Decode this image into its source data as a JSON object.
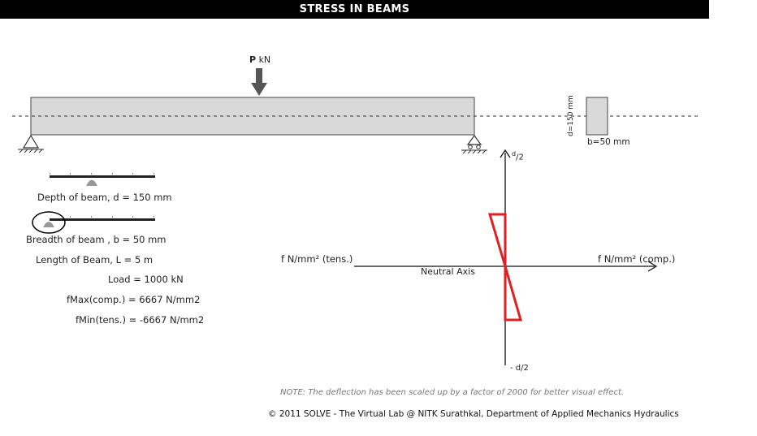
{
  "title": "STRESS IN BEAMS",
  "load_label": {
    "symbol": "P",
    "unit": "kN"
  },
  "section": {
    "depth_label": "d=150 mm",
    "breadth_label": "b=50 mm"
  },
  "params": {
    "depth": "Depth of beam, d =  150 mm",
    "breadth": "Breadth of beam , b = 50 mm",
    "length": "Length of Beam, L = 5 m",
    "load": "Load = 1000 kN",
    "fmax": "fMax(comp.) = 6667 N/mm2",
    "fmin": "fMin(tens.) = -6667 N/mm2"
  },
  "sliders": {
    "depth": {
      "position": 0.4
    },
    "breadth": {
      "position": 0.0
    }
  },
  "stress_diagram": {
    "top_label": "d",
    "top_sub": "/2",
    "bottom_label": "- d",
    "bottom_sub": "/2",
    "left_label": "f N/mm² (tens.)",
    "right_label": "f N/mm² (comp.)",
    "neutral_axis": "Neutral Axis",
    "stress_color": "#e02020"
  },
  "note": "NOTE: The deflection has been scaled up by a factor of 2000 for better visual effect.",
  "copyright": "© 2011 SOLVE - The Virtual Lab @ NITK Surathkal, Department of Applied Mechanics Hydraulics"
}
